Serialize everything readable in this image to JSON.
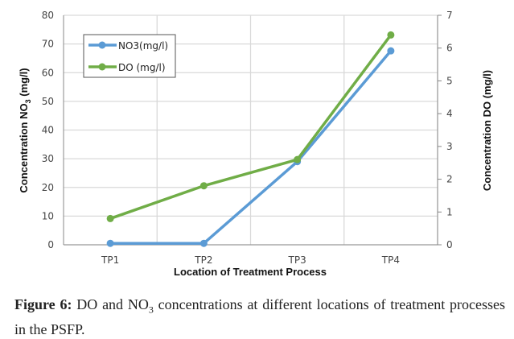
{
  "chart_data": {
    "type": "line",
    "categories": [
      "TP1",
      "TP2",
      "TP3",
      "TP4"
    ],
    "series": [
      {
        "name": "NO3(mg/l)",
        "axis": "left",
        "color": "#5b9bd5",
        "values": [
          0.5,
          0.5,
          29,
          67.6
        ]
      },
      {
        "name": "DO (mg/l)",
        "axis": "right",
        "color": "#70ad47",
        "values": [
          0.8,
          1.8,
          2.6,
          6.4
        ]
      }
    ],
    "xlabel": "Location of Treatment Process",
    "ylabel_left": {
      "text": "Concentration NO",
      "sub": "3",
      "tail": " (mg/l)"
    },
    "ylabel_right": "Concentration DO (mg/l)",
    "ylim_left": [
      0,
      80
    ],
    "yticks_left": [
      "0",
      "10",
      "20",
      "30",
      "40",
      "50",
      "60",
      "70",
      "80"
    ],
    "ylim_right": [
      0,
      7
    ],
    "yticks_right": [
      "0",
      "1",
      "2",
      "3",
      "4",
      "5",
      "6",
      "7"
    ],
    "grid": true,
    "legend": "top-left"
  },
  "caption": {
    "label": "Figure 6:",
    "text_a": " DO and NO",
    "sub": "3",
    "text_b": " concentrations at different locations of treatment processes in the PSFP."
  }
}
